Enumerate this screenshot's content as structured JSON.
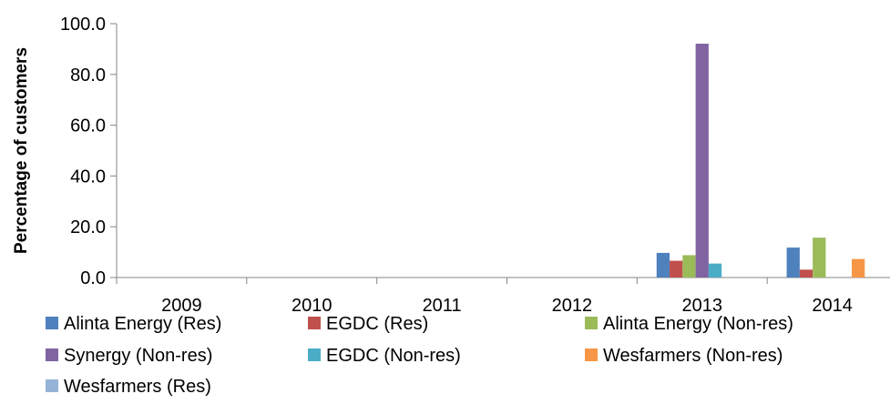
{
  "chart_data": {
    "type": "bar",
    "title": "",
    "xlabel": "",
    "ylabel": "Percentage of customers",
    "ylim": [
      0,
      100
    ],
    "yticks": [
      "0.0",
      "20.0",
      "40.0",
      "60.0",
      "80.0",
      "100.0"
    ],
    "categories": [
      "2009",
      "2010",
      "2011",
      "2012",
      "2013",
      "2014"
    ],
    "grid": false,
    "legend_position": "bottom",
    "series": [
      {
        "name": "Alinta Energy (Res)",
        "color": "#4F81BD",
        "values": [
          null,
          null,
          null,
          null,
          9.7,
          11.8
        ]
      },
      {
        "name": "EGDC (Res)",
        "color": "#C0504D",
        "values": [
          null,
          null,
          null,
          null,
          6.6,
          3.1
        ]
      },
      {
        "name": "Alinta Energy (Non-res)",
        "color": "#9BBB59",
        "values": [
          null,
          null,
          null,
          null,
          8.8,
          15.7
        ]
      },
      {
        "name": "Synergy (Non-res)",
        "color": "#8064A2",
        "values": [
          null,
          null,
          null,
          null,
          92.1,
          null
        ]
      },
      {
        "name": "EGDC (Non-res)",
        "color": "#4BACC6",
        "values": [
          null,
          null,
          null,
          null,
          5.5,
          null
        ]
      },
      {
        "name": "Wesfarmers (Non-res)",
        "color": "#F79646",
        "values": [
          null,
          null,
          null,
          null,
          null,
          7.3
        ]
      },
      {
        "name": "Wesfarmers (Res)",
        "color": "#95B3D7",
        "values": [
          null,
          null,
          null,
          null,
          null,
          null
        ]
      }
    ]
  }
}
